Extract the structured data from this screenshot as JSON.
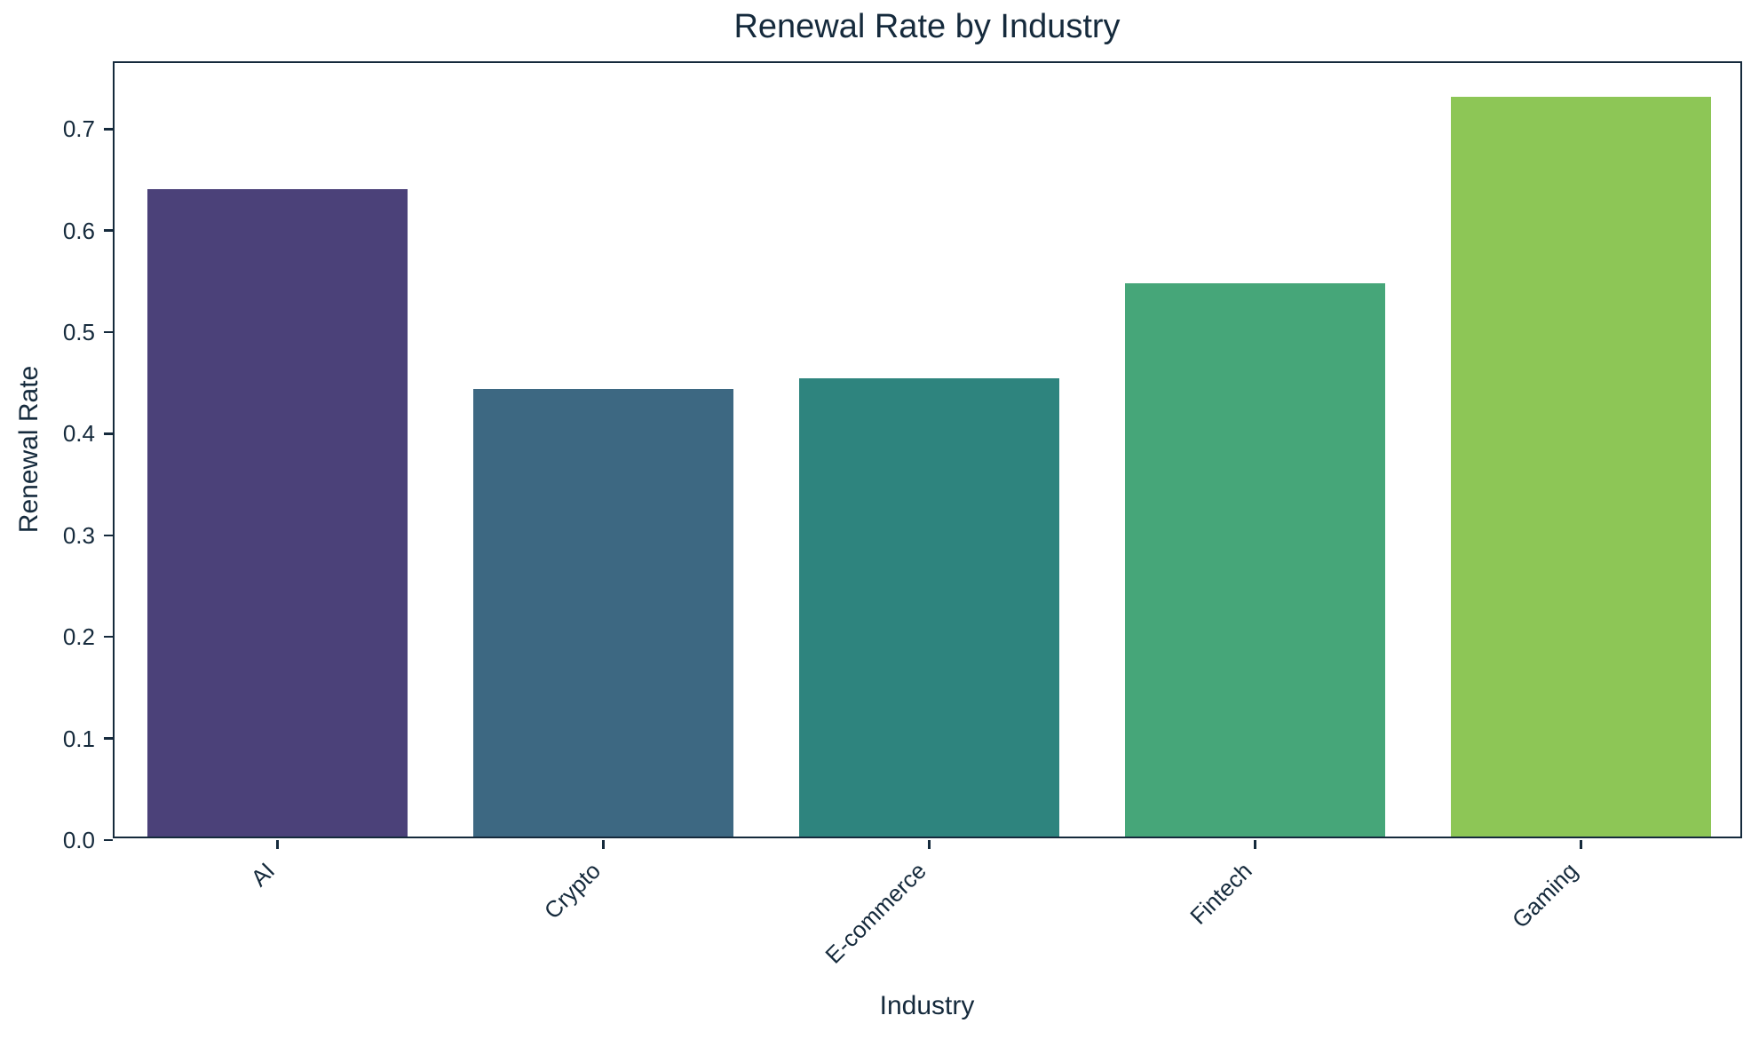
{
  "chart_data": {
    "type": "bar",
    "title": "Renewal Rate by Industry",
    "xlabel": "Industry",
    "ylabel": "Renewal Rate",
    "categories": [
      "AI",
      "Crypto",
      "E-commerce",
      "Fintech",
      "Gaming"
    ],
    "values": [
      0.637,
      0.441,
      0.451,
      0.545,
      0.728
    ],
    "bar_colors": [
      "#4B4179",
      "#3D6882",
      "#2E847E",
      "#46A679",
      "#8DC656"
    ],
    "ylim": [
      0.0,
      0.765
    ],
    "yticks": [
      "0.0",
      "0.1",
      "0.2",
      "0.3",
      "0.4",
      "0.5",
      "0.6",
      "0.7"
    ],
    "grid": false,
    "legend": "none",
    "xtick_rotation_deg": 45,
    "text_color": "#152A3C",
    "spine_color": "#152A3C",
    "background_color": "#FFFFFF"
  }
}
